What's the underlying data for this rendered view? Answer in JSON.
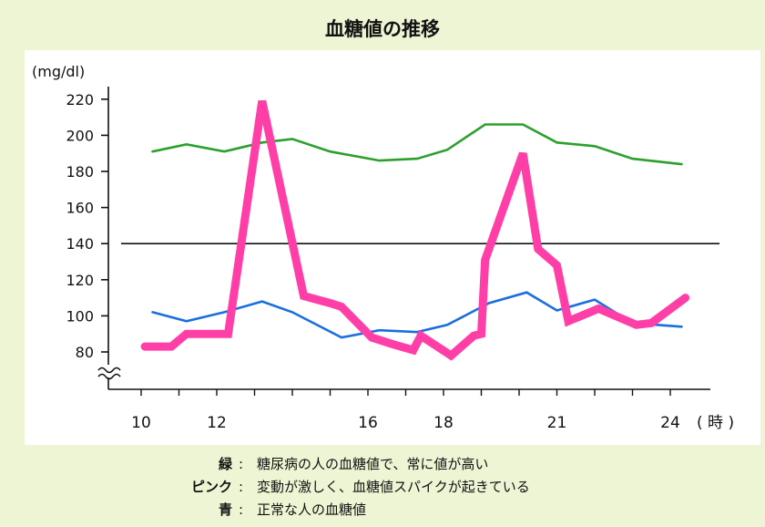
{
  "chart_data": {
    "type": "line",
    "title": "血糖値の推移",
    "ylabel": "(mg/dl)",
    "xunit": "( 時 )",
    "ylim": [
      70,
      230
    ],
    "y_ticks": [
      80,
      100,
      120,
      140,
      160,
      180,
      200,
      220
    ],
    "x_ticks": [
      10,
      12,
      16,
      18,
      21,
      24
    ],
    "reference_line": 140,
    "series": [
      {
        "key": "green",
        "color": "#2ca02c",
        "points": [
          [
            10.3,
            191
          ],
          [
            11.2,
            195
          ],
          [
            12.2,
            191
          ],
          [
            13.2,
            196
          ],
          [
            14,
            198
          ],
          [
            15,
            191
          ],
          [
            16.3,
            186
          ],
          [
            17.3,
            187
          ],
          [
            18.1,
            192
          ],
          [
            19.1,
            206
          ],
          [
            20.1,
            206
          ],
          [
            21,
            196
          ],
          [
            22,
            194
          ],
          [
            23,
            187
          ],
          [
            24.3,
            184
          ]
        ]
      },
      {
        "key": "blue",
        "color": "#1a6fe0",
        "points": [
          [
            10.3,
            102
          ],
          [
            11.2,
            97
          ],
          [
            12.2,
            102
          ],
          [
            13.2,
            108
          ],
          [
            14,
            102
          ],
          [
            15.3,
            88
          ],
          [
            16.3,
            92
          ],
          [
            17.3,
            91
          ],
          [
            18.1,
            95
          ],
          [
            19.2,
            107
          ],
          [
            20.2,
            113
          ],
          [
            21,
            103
          ],
          [
            22,
            109
          ],
          [
            23,
            96
          ],
          [
            24.3,
            94
          ]
        ]
      },
      {
        "key": "pink",
        "color": "#ff3fa7",
        "points": [
          [
            10.1,
            83
          ],
          [
            10.8,
            83
          ],
          [
            11.2,
            90
          ],
          [
            11.7,
            90
          ],
          [
            12.3,
            90
          ],
          [
            13.2,
            219
          ],
          [
            14.3,
            111
          ],
          [
            15,
            107
          ],
          [
            15.3,
            105
          ],
          [
            16.1,
            88
          ],
          [
            16.7,
            84
          ],
          [
            17.2,
            81
          ],
          [
            17.4,
            89
          ],
          [
            18.2,
            78
          ],
          [
            18.8,
            89
          ],
          [
            19,
            90
          ],
          [
            19.1,
            131
          ],
          [
            20.1,
            190
          ],
          [
            20.5,
            137
          ],
          [
            21,
            128
          ],
          [
            21.3,
            97
          ],
          [
            22.1,
            104
          ],
          [
            23.1,
            95
          ],
          [
            23.5,
            96
          ],
          [
            24.4,
            110
          ]
        ]
      }
    ],
    "legend": [
      {
        "key": "緑",
        "text": "糖尿病の人の血糖値で、常に値が高い"
      },
      {
        "key": "ピンク",
        "text": "変動が激しく、血糖値スパイクが起きている"
      },
      {
        "key": "青",
        "text": "正常な人の血糖値"
      }
    ]
  }
}
